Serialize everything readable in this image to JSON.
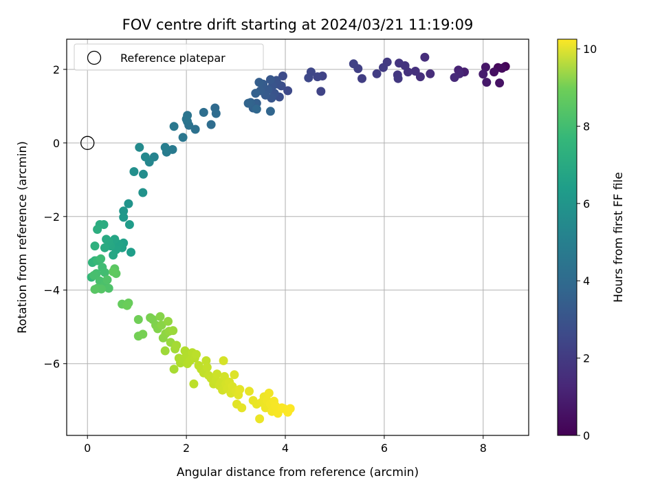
{
  "chart_data": {
    "type": "scatter",
    "title": "FOV centre drift starting at 2024/03/21 11:19:09",
    "xlabel": "Angular distance from reference (arcmin)",
    "ylabel": "Rotation from reference (arcmin)",
    "xlim": [
      -0.42,
      8.92
    ],
    "ylim": [
      -7.95,
      2.82
    ],
    "xticks": [
      "0",
      "2",
      "4",
      "6",
      "8"
    ],
    "xtick_values": [
      0,
      2,
      4,
      6,
      8
    ],
    "yticks": [
      "−6",
      "−4",
      "−2",
      "0",
      "2"
    ],
    "ytick_values": [
      -6,
      -4,
      -2,
      0,
      2
    ],
    "grid": true,
    "legend": {
      "entries": [
        "Reference platepar"
      ],
      "placement": "top-left"
    },
    "reference_point": {
      "x": 0,
      "y": 0
    },
    "colorbar": {
      "label": "Hours from first FF file",
      "colormap": "viridis",
      "range": [
        0,
        10.25
      ],
      "ticks": [
        "0",
        "2",
        "4",
        "6",
        "8",
        "10"
      ],
      "tick_values": [
        0,
        2,
        4,
        6,
        8,
        10
      ]
    },
    "points": [
      {
        "x": 8.45,
        "y": 2.08,
        "h": 0.1
      },
      {
        "x": 8.3,
        "y": 2.05,
        "h": 0.2
      },
      {
        "x": 8.38,
        "y": 2.03,
        "h": 0.3
      },
      {
        "x": 8.22,
        "y": 1.93,
        "h": 0.4
      },
      {
        "x": 8.33,
        "y": 1.63,
        "h": 0.5
      },
      {
        "x": 8.05,
        "y": 2.06,
        "h": 0.6
      },
      {
        "x": 8.07,
        "y": 1.65,
        "h": 0.7
      },
      {
        "x": 8.0,
        "y": 1.87,
        "h": 0.8
      },
      {
        "x": 7.62,
        "y": 1.93,
        "h": 0.9
      },
      {
        "x": 7.5,
        "y": 1.98,
        "h": 1.0
      },
      {
        "x": 7.52,
        "y": 1.88,
        "h": 1.1
      },
      {
        "x": 7.42,
        "y": 1.78,
        "h": 1.2
      },
      {
        "x": 6.93,
        "y": 1.88,
        "h": 1.3
      },
      {
        "x": 6.82,
        "y": 2.33,
        "h": 1.35
      },
      {
        "x": 6.73,
        "y": 1.8,
        "h": 1.4
      },
      {
        "x": 6.63,
        "y": 1.95,
        "h": 1.45
      },
      {
        "x": 6.48,
        "y": 1.93,
        "h": 1.5
      },
      {
        "x": 6.42,
        "y": 2.1,
        "h": 1.55
      },
      {
        "x": 6.3,
        "y": 2.17,
        "h": 1.6
      },
      {
        "x": 6.27,
        "y": 1.85,
        "h": 1.65
      },
      {
        "x": 6.28,
        "y": 1.75,
        "h": 1.7
      },
      {
        "x": 6.06,
        "y": 2.2,
        "h": 1.75
      },
      {
        "x": 5.98,
        "y": 2.05,
        "h": 1.8
      },
      {
        "x": 5.85,
        "y": 1.88,
        "h": 1.85
      },
      {
        "x": 5.55,
        "y": 1.75,
        "h": 1.9
      },
      {
        "x": 5.47,
        "y": 2.02,
        "h": 1.95
      },
      {
        "x": 5.38,
        "y": 2.15,
        "h": 2.0
      },
      {
        "x": 4.75,
        "y": 1.82,
        "h": 2.05
      },
      {
        "x": 4.72,
        "y": 1.4,
        "h": 2.1
      },
      {
        "x": 4.65,
        "y": 1.8,
        "h": 2.15
      },
      {
        "x": 4.52,
        "y": 1.93,
        "h": 2.2
      },
      {
        "x": 4.47,
        "y": 1.77,
        "h": 2.25
      },
      {
        "x": 4.05,
        "y": 1.42,
        "h": 2.3
      },
      {
        "x": 3.95,
        "y": 1.82,
        "h": 2.4
      },
      {
        "x": 3.92,
        "y": 1.55,
        "h": 2.45
      },
      {
        "x": 3.88,
        "y": 1.25,
        "h": 2.5
      },
      {
        "x": 3.85,
        "y": 1.6,
        "h": 2.55
      },
      {
        "x": 3.82,
        "y": 1.7,
        "h": 2.6
      },
      {
        "x": 3.78,
        "y": 1.35,
        "h": 2.65
      },
      {
        "x": 3.74,
        "y": 1.55,
        "h": 2.7
      },
      {
        "x": 3.72,
        "y": 1.22,
        "h": 2.75
      },
      {
        "x": 3.7,
        "y": 1.72,
        "h": 2.8
      },
      {
        "x": 3.65,
        "y": 1.45,
        "h": 2.85
      },
      {
        "x": 3.6,
        "y": 1.3,
        "h": 2.9
      },
      {
        "x": 3.55,
        "y": 1.6,
        "h": 2.95
      },
      {
        "x": 3.5,
        "y": 1.42,
        "h": 3.0
      },
      {
        "x": 3.47,
        "y": 1.65,
        "h": 3.05
      },
      {
        "x": 3.42,
        "y": 1.08,
        "h": 3.1
      },
      {
        "x": 3.4,
        "y": 1.35,
        "h": 3.15
      },
      {
        "x": 3.35,
        "y": 0.95,
        "h": 3.2
      },
      {
        "x": 3.3,
        "y": 1.1,
        "h": 3.25
      },
      {
        "x": 3.25,
        "y": 1.08,
        "h": 3.3
      },
      {
        "x": 3.7,
        "y": 0.86,
        "h": 3.35
      },
      {
        "x": 3.42,
        "y": 0.92,
        "h": 3.4
      },
      {
        "x": 2.58,
        "y": 0.95,
        "h": 3.55
      },
      {
        "x": 2.6,
        "y": 0.8,
        "h": 3.6
      },
      {
        "x": 2.5,
        "y": 0.5,
        "h": 3.65
      },
      {
        "x": 2.35,
        "y": 0.83,
        "h": 3.7
      },
      {
        "x": 2.18,
        "y": 0.37,
        "h": 3.8
      },
      {
        "x": 2.05,
        "y": 0.48,
        "h": 3.85
      },
      {
        "x": 2.02,
        "y": 0.58,
        "h": 3.9
      },
      {
        "x": 2.02,
        "y": 0.75,
        "h": 3.95
      },
      {
        "x": 2.0,
        "y": 0.65,
        "h": 4.0
      },
      {
        "x": 1.93,
        "y": 0.15,
        "h": 4.05
      },
      {
        "x": 1.75,
        "y": 0.45,
        "h": 4.1
      },
      {
        "x": 1.72,
        "y": -0.18,
        "h": 4.2
      },
      {
        "x": 1.6,
        "y": -0.25,
        "h": 4.3
      },
      {
        "x": 1.57,
        "y": -0.12,
        "h": 4.4
      },
      {
        "x": 1.35,
        "y": -0.38,
        "h": 4.6
      },
      {
        "x": 1.25,
        "y": -0.52,
        "h": 4.7
      },
      {
        "x": 1.17,
        "y": -0.38,
        "h": 4.8
      },
      {
        "x": 1.05,
        "y": -0.12,
        "h": 4.9
      },
      {
        "x": 1.13,
        "y": -0.85,
        "h": 5.0
      },
      {
        "x": 0.94,
        "y": -0.78,
        "h": 5.1
      },
      {
        "x": 1.12,
        "y": -1.35,
        "h": 5.2
      },
      {
        "x": 0.83,
        "y": -1.65,
        "h": 5.3
      },
      {
        "x": 0.73,
        "y": -1.85,
        "h": 5.4
      },
      {
        "x": 0.73,
        "y": -2.02,
        "h": 5.5
      },
      {
        "x": 0.85,
        "y": -2.22,
        "h": 5.6
      },
      {
        "x": 0.88,
        "y": -2.97,
        "h": 5.7
      },
      {
        "x": 0.73,
        "y": -2.72,
        "h": 5.8
      },
      {
        "x": 0.7,
        "y": -2.85,
        "h": 5.85
      },
      {
        "x": 0.63,
        "y": -2.75,
        "h": 5.9
      },
      {
        "x": 0.58,
        "y": -2.9,
        "h": 5.95
      },
      {
        "x": 0.55,
        "y": -2.62,
        "h": 6.0
      },
      {
        "x": 0.52,
        "y": -3.05,
        "h": 6.05
      },
      {
        "x": 0.47,
        "y": -2.8,
        "h": 6.1
      },
      {
        "x": 0.43,
        "y": -2.68,
        "h": 6.15
      },
      {
        "x": 0.38,
        "y": -2.62,
        "h": 6.2
      },
      {
        "x": 0.35,
        "y": -2.85,
        "h": 6.25
      },
      {
        "x": 0.33,
        "y": -2.22,
        "h": 6.3
      },
      {
        "x": 0.25,
        "y": -2.22,
        "h": 6.35
      },
      {
        "x": 0.2,
        "y": -2.35,
        "h": 6.4
      },
      {
        "x": 0.15,
        "y": -2.8,
        "h": 6.5
      },
      {
        "x": 0.15,
        "y": -3.2,
        "h": 6.6
      },
      {
        "x": 0.1,
        "y": -3.25,
        "h": 6.7
      },
      {
        "x": 0.08,
        "y": -3.65,
        "h": 6.8
      },
      {
        "x": 0.2,
        "y": -3.2,
        "h": 6.9
      },
      {
        "x": 0.27,
        "y": -3.15,
        "h": 7.0
      },
      {
        "x": 0.3,
        "y": -3.38,
        "h": 7.05
      },
      {
        "x": 0.35,
        "y": -3.52,
        "h": 7.1
      },
      {
        "x": 0.18,
        "y": -3.55,
        "h": 7.15
      },
      {
        "x": 0.13,
        "y": -3.6,
        "h": 7.2
      },
      {
        "x": 0.25,
        "y": -3.75,
        "h": 7.25
      },
      {
        "x": 0.35,
        "y": -3.85,
        "h": 7.3
      },
      {
        "x": 0.43,
        "y": -3.95,
        "h": 7.35
      },
      {
        "x": 0.4,
        "y": -3.72,
        "h": 7.4
      },
      {
        "x": 0.2,
        "y": -3.95,
        "h": 7.45
      },
      {
        "x": 0.28,
        "y": -3.97,
        "h": 7.5
      },
      {
        "x": 0.15,
        "y": -3.98,
        "h": 7.55
      },
      {
        "x": 0.55,
        "y": -3.42,
        "h": 7.6
      },
      {
        "x": 0.58,
        "y": -3.55,
        "h": 7.65
      },
      {
        "x": 0.52,
        "y": -3.5,
        "h": 7.7
      },
      {
        "x": 0.7,
        "y": -4.38,
        "h": 7.8
      },
      {
        "x": 0.83,
        "y": -4.35,
        "h": 7.85
      },
      {
        "x": 0.8,
        "y": -4.42,
        "h": 7.9
      },
      {
        "x": 1.03,
        "y": -4.8,
        "h": 8.0
      },
      {
        "x": 1.03,
        "y": -5.25,
        "h": 8.05
      },
      {
        "x": 1.12,
        "y": -5.2,
        "h": 8.1
      },
      {
        "x": 1.27,
        "y": -4.75,
        "h": 8.15
      },
      {
        "x": 1.32,
        "y": -4.8,
        "h": 8.2
      },
      {
        "x": 1.38,
        "y": -4.95,
        "h": 8.25
      },
      {
        "x": 1.42,
        "y": -5.05,
        "h": 8.3
      },
      {
        "x": 1.47,
        "y": -4.72,
        "h": 8.35
      },
      {
        "x": 1.5,
        "y": -4.95,
        "h": 8.4
      },
      {
        "x": 1.53,
        "y": -5.3,
        "h": 8.45
      },
      {
        "x": 1.58,
        "y": -5.18,
        "h": 8.5
      },
      {
        "x": 1.63,
        "y": -4.85,
        "h": 8.55
      },
      {
        "x": 1.65,
        "y": -5.12,
        "h": 8.6
      },
      {
        "x": 1.68,
        "y": -5.42,
        "h": 8.65
      },
      {
        "x": 1.73,
        "y": -5.1,
        "h": 8.7
      },
      {
        "x": 1.57,
        "y": -5.65,
        "h": 8.75
      },
      {
        "x": 1.77,
        "y": -5.6,
        "h": 8.8
      },
      {
        "x": 1.8,
        "y": -5.5,
        "h": 8.85
      },
      {
        "x": 1.75,
        "y": -6.15,
        "h": 8.9
      },
      {
        "x": 1.85,
        "y": -5.85,
        "h": 8.95
      },
      {
        "x": 1.88,
        "y": -5.98,
        "h": 9.0
      },
      {
        "x": 1.93,
        "y": -5.88,
        "h": 9.02
      },
      {
        "x": 1.97,
        "y": -5.65,
        "h": 9.05
      },
      {
        "x": 2.0,
        "y": -5.8,
        "h": 9.07
      },
      {
        "x": 2.02,
        "y": -6.0,
        "h": 9.1
      },
      {
        "x": 2.07,
        "y": -5.92,
        "h": 9.12
      },
      {
        "x": 2.12,
        "y": -5.7,
        "h": 9.15
      },
      {
        "x": 2.17,
        "y": -5.85,
        "h": 9.17
      },
      {
        "x": 2.2,
        "y": -5.75,
        "h": 9.2
      },
      {
        "x": 2.15,
        "y": -6.55,
        "h": 9.22
      },
      {
        "x": 2.25,
        "y": -6.05,
        "h": 9.25
      },
      {
        "x": 2.3,
        "y": -6.15,
        "h": 9.27
      },
      {
        "x": 2.35,
        "y": -6.25,
        "h": 9.3
      },
      {
        "x": 2.4,
        "y": -5.92,
        "h": 9.32
      },
      {
        "x": 2.42,
        "y": -6.1,
        "h": 9.35
      },
      {
        "x": 2.45,
        "y": -6.32,
        "h": 9.37
      },
      {
        "x": 2.5,
        "y": -6.4,
        "h": 9.4
      },
      {
        "x": 2.55,
        "y": -6.55,
        "h": 9.42
      },
      {
        "x": 2.6,
        "y": -6.45,
        "h": 9.45
      },
      {
        "x": 2.62,
        "y": -6.28,
        "h": 9.47
      },
      {
        "x": 2.67,
        "y": -6.6,
        "h": 9.5
      },
      {
        "x": 2.7,
        "y": -6.5,
        "h": 9.52
      },
      {
        "x": 2.73,
        "y": -6.72,
        "h": 9.55
      },
      {
        "x": 2.77,
        "y": -6.35,
        "h": 9.57
      },
      {
        "x": 2.8,
        "y": -6.55,
        "h": 9.6
      },
      {
        "x": 2.75,
        "y": -5.92,
        "h": 9.62
      },
      {
        "x": 2.83,
        "y": -6.68,
        "h": 9.65
      },
      {
        "x": 2.87,
        "y": -6.5,
        "h": 9.67
      },
      {
        "x": 2.9,
        "y": -6.8,
        "h": 9.7
      },
      {
        "x": 2.93,
        "y": -6.62,
        "h": 9.72
      },
      {
        "x": 2.97,
        "y": -6.3,
        "h": 9.75
      },
      {
        "x": 3.0,
        "y": -6.75,
        "h": 9.77
      },
      {
        "x": 3.02,
        "y": -7.1,
        "h": 9.8
      },
      {
        "x": 3.05,
        "y": -6.85,
        "h": 9.82
      },
      {
        "x": 3.08,
        "y": -6.7,
        "h": 9.85
      },
      {
        "x": 3.12,
        "y": -7.2,
        "h": 9.87
      },
      {
        "x": 3.27,
        "y": -6.75,
        "h": 9.9
      },
      {
        "x": 3.35,
        "y": -7.0,
        "h": 9.92
      },
      {
        "x": 3.42,
        "y": -7.1,
        "h": 9.94
      },
      {
        "x": 3.48,
        "y": -7.5,
        "h": 9.96
      },
      {
        "x": 3.52,
        "y": -7.05,
        "h": 9.98
      },
      {
        "x": 3.57,
        "y": -6.9,
        "h": 10.0
      },
      {
        "x": 3.6,
        "y": -7.2,
        "h": 10.02
      },
      {
        "x": 3.63,
        "y": -7.0,
        "h": 10.04
      },
      {
        "x": 3.67,
        "y": -6.8,
        "h": 10.06
      },
      {
        "x": 3.7,
        "y": -7.1,
        "h": 10.08
      },
      {
        "x": 3.73,
        "y": -7.3,
        "h": 10.1
      },
      {
        "x": 3.77,
        "y": -7.02,
        "h": 10.12
      },
      {
        "x": 3.8,
        "y": -7.15,
        "h": 10.14
      },
      {
        "x": 3.85,
        "y": -7.35,
        "h": 10.16
      },
      {
        "x": 3.93,
        "y": -7.2,
        "h": 10.18
      },
      {
        "x": 3.97,
        "y": -7.22,
        "h": 10.2
      },
      {
        "x": 4.05,
        "y": -7.32,
        "h": 10.22
      },
      {
        "x": 4.1,
        "y": -7.22,
        "h": 10.24
      }
    ]
  }
}
